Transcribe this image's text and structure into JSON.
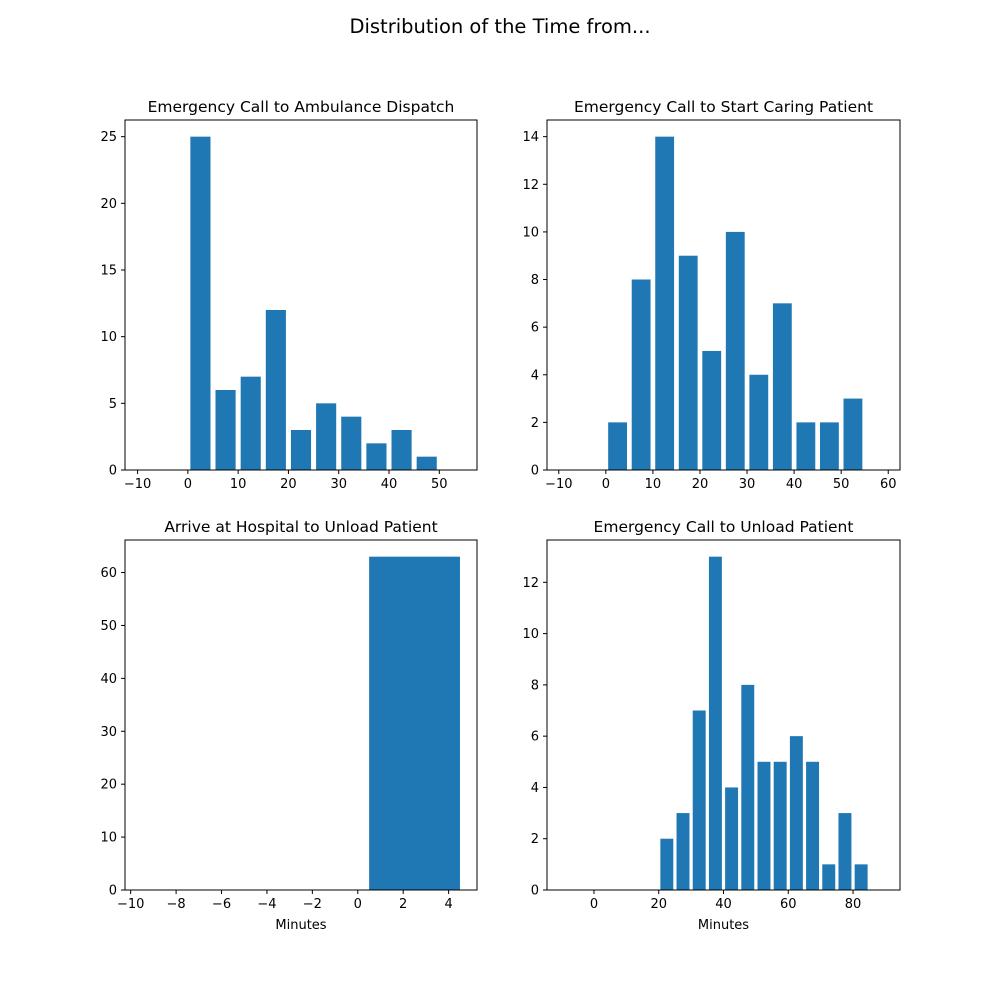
{
  "figure": {
    "title": "Distribution of the Time from..."
  },
  "colors": {
    "bar": "#1f77b4",
    "axis": "#000000",
    "background": "#ffffff"
  },
  "chart_data": [
    {
      "type": "bar",
      "title": "Emergency Call to Ambulance Dispatch",
      "xlabel": "",
      "ylabel": "",
      "x": [
        2.5,
        7.5,
        12.5,
        17.5,
        22.5,
        27.5,
        32.5,
        37.5,
        42.5,
        47.5,
        52.5
      ],
      "bar_width": 4,
      "values": [
        25,
        6,
        7,
        12,
        3,
        5,
        4,
        2,
        3,
        1,
        0
      ],
      "xlim": [
        -12.5,
        57.5
      ],
      "ylim": [
        0,
        26.25
      ],
      "xticks": [
        -10,
        0,
        10,
        20,
        30,
        40,
        50
      ],
      "yticks": [
        0,
        5,
        10,
        15,
        20,
        25
      ],
      "grid": false
    },
    {
      "type": "bar",
      "title": "Emergency Call to Start Caring Patient",
      "xlabel": "",
      "ylabel": "",
      "x": [
        2.5,
        7.5,
        12.5,
        17.5,
        22.5,
        27.5,
        32.5,
        37.5,
        42.5,
        47.5,
        52.5
      ],
      "bar_width": 4,
      "values": [
        2,
        8,
        14,
        9,
        5,
        10,
        4,
        7,
        2,
        2,
        3
      ],
      "xlim": [
        -12.5,
        62.5
      ],
      "ylim": [
        0,
        14.7
      ],
      "xticks": [
        -10,
        0,
        10,
        20,
        30,
        40,
        50,
        60
      ],
      "yticks": [
        0,
        2,
        4,
        6,
        8,
        10,
        12,
        14
      ],
      "grid": false
    },
    {
      "type": "bar",
      "title": "Arrive at Hospital to Unload Patient",
      "xlabel": "Minutes",
      "ylabel": "",
      "x": [
        2.5
      ],
      "bar_width": 4,
      "values": [
        63
      ],
      "xlim": [
        -10.25,
        5.25
      ],
      "ylim": [
        0,
        66.15
      ],
      "xticks": [
        -10,
        -8,
        -6,
        -4,
        -2,
        0,
        2,
        4
      ],
      "yticks": [
        0,
        10,
        20,
        30,
        40,
        50,
        60
      ],
      "grid": false
    },
    {
      "type": "bar",
      "title": "Emergency Call to Unload Patient",
      "xlabel": "Minutes",
      "ylabel": "",
      "x": [
        22.5,
        27.5,
        32.5,
        37.5,
        42.5,
        47.5,
        52.5,
        57.5,
        62.5,
        67.5,
        72.5,
        77.5,
        82.5
      ],
      "bar_width": 4,
      "values": [
        2,
        3,
        7,
        13,
        4,
        8,
        5,
        5,
        6,
        5,
        1,
        3,
        1
      ],
      "xlim": [
        -14.5,
        94.5
      ],
      "ylim": [
        0,
        13.65
      ],
      "xticks": [
        0,
        20,
        40,
        60,
        80
      ],
      "yticks": [
        0,
        2,
        4,
        6,
        8,
        10,
        12
      ],
      "grid": false
    }
  ]
}
